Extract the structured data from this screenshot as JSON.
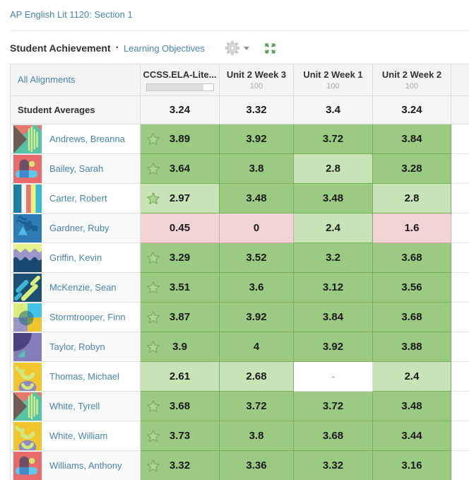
{
  "page": {
    "course_link": "AP English Lit 1120: Section 1",
    "title": "Student Achievement",
    "separator": "·",
    "learning_objectives_link": "Learning Objectives"
  },
  "icons": {
    "settings": "gear-icon",
    "settings_caret": "caret-down-icon",
    "expand": "expand-arrows-icon",
    "star": "star-outline-icon"
  },
  "colors": {
    "link_blue": "#4a83b0",
    "header_bg": "#f4f4f4",
    "score_green": "#9bca83",
    "score_light_green": "#c8e4b7",
    "score_red": "#f2d4d4",
    "expand_icon_green": "#4b9b4b"
  },
  "table": {
    "all_alignments_label": "All Alignments",
    "columns": [
      {
        "label": "CCSS.ELA-Lite...",
        "progress_percent": 86
      },
      {
        "label": "Unit 2 Week 3",
        "max": "100"
      },
      {
        "label": "Unit 2 Week 1",
        "max": "100"
      },
      {
        "label": "Unit 2 Week 2",
        "max": "100"
      }
    ],
    "averages": {
      "label": "Student Averages",
      "values": [
        "3.24",
        "3.32",
        "3.4",
        "3.24"
      ]
    },
    "students": [
      {
        "name": "Andrews, Breanna",
        "avatar": "prism",
        "starred": true,
        "scores": [
          {
            "value": "3.89",
            "level": "green"
          },
          {
            "value": "3.92",
            "level": "green"
          },
          {
            "value": "3.72",
            "level": "green"
          },
          {
            "value": "3.84",
            "level": "green"
          }
        ]
      },
      {
        "name": "Bailey, Sarah",
        "avatar": "arch",
        "starred": true,
        "scores": [
          {
            "value": "3.64",
            "level": "green"
          },
          {
            "value": "3.8",
            "level": "green"
          },
          {
            "value": "2.8",
            "level": "light"
          },
          {
            "value": "3.28",
            "level": "green"
          }
        ]
      },
      {
        "name": "Carter, Robert",
        "avatar": "bars",
        "starred": true,
        "scores": [
          {
            "value": "2.97",
            "level": "light"
          },
          {
            "value": "3.48",
            "level": "green"
          },
          {
            "value": "3.48",
            "level": "green"
          },
          {
            "value": "2.8",
            "level": "light"
          }
        ]
      },
      {
        "name": "Gardner, Ruby",
        "avatar": "blueshapes",
        "starred": false,
        "scores": [
          {
            "value": "0.45",
            "level": "red"
          },
          {
            "value": "0",
            "level": "red"
          },
          {
            "value": "2.4",
            "level": "light"
          },
          {
            "value": "1.6",
            "level": "red"
          }
        ]
      },
      {
        "name": "Griffin, Kevin",
        "avatar": "waves",
        "starred": true,
        "scores": [
          {
            "value": "3.29",
            "level": "green"
          },
          {
            "value": "3.52",
            "level": "green"
          },
          {
            "value": "3.2",
            "level": "green"
          },
          {
            "value": "3.68",
            "level": "green"
          }
        ]
      },
      {
        "name": "McKenzie, Sean",
        "avatar": "slashes",
        "starred": true,
        "scores": [
          {
            "value": "3.51",
            "level": "green"
          },
          {
            "value": "3.6",
            "level": "green"
          },
          {
            "value": "3.12",
            "level": "green"
          },
          {
            "value": "3.56",
            "level": "green"
          }
        ]
      },
      {
        "name": "Stormtrooper, Finn",
        "avatar": "quadrants",
        "starred": true,
        "scores": [
          {
            "value": "3.87",
            "level": "green"
          },
          {
            "value": "3.92",
            "level": "green"
          },
          {
            "value": "3.84",
            "level": "green"
          },
          {
            "value": "3.68",
            "level": "green"
          }
        ]
      },
      {
        "name": "Taylor, Robyn",
        "avatar": "quarter",
        "starred": true,
        "scores": [
          {
            "value": "3.9",
            "level": "green"
          },
          {
            "value": "4",
            "level": "green"
          },
          {
            "value": "3.92",
            "level": "green"
          },
          {
            "value": "3.88",
            "level": "green"
          }
        ]
      },
      {
        "name": "Thomas, Michael",
        "avatar": "smiles",
        "starred": false,
        "scores": [
          {
            "value": "2.61",
            "level": "light"
          },
          {
            "value": "2.68",
            "level": "light"
          },
          {
            "value": "-",
            "level": "empty"
          },
          {
            "value": "2.4",
            "level": "light"
          }
        ]
      },
      {
        "name": "White, Tyrell",
        "avatar": "prism",
        "starred": true,
        "scores": [
          {
            "value": "3.68",
            "level": "green"
          },
          {
            "value": "3.72",
            "level": "green"
          },
          {
            "value": "3.72",
            "level": "green"
          },
          {
            "value": "3.48",
            "level": "green"
          }
        ]
      },
      {
        "name": "White, William",
        "avatar": "smiles",
        "starred": true,
        "scores": [
          {
            "value": "3.73",
            "level": "green"
          },
          {
            "value": "3.8",
            "level": "green"
          },
          {
            "value": "3.68",
            "level": "green"
          },
          {
            "value": "3.44",
            "level": "green"
          }
        ]
      },
      {
        "name": "Williams, Anthony",
        "avatar": "arch",
        "starred": true,
        "scores": [
          {
            "value": "3.32",
            "level": "green"
          },
          {
            "value": "3.36",
            "level": "green"
          },
          {
            "value": "3.32",
            "level": "green"
          },
          {
            "value": "3.16",
            "level": "green"
          }
        ]
      }
    ]
  }
}
